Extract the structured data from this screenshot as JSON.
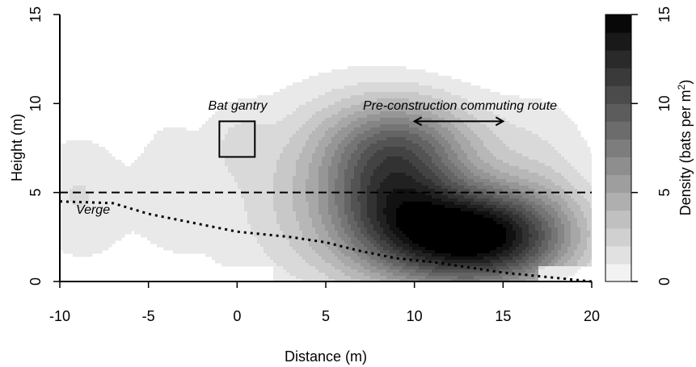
{
  "chart_data": {
    "type": "heatmap",
    "xlabel": "Distance (m)",
    "ylabel": "Height (m)",
    "xlim": [
      -10,
      20
    ],
    "ylim": [
      0,
      15
    ],
    "x_ticks": [
      "-10",
      "-5",
      "0",
      "5",
      "10",
      "15",
      "20"
    ],
    "y_ticks": [
      "0",
      "5",
      "10",
      "15"
    ],
    "colorbar": {
      "label_main": "Density (bats per m",
      "label_sup": "2",
      "label_close": ")",
      "range": [
        0,
        15
      ],
      "levels": 15,
      "ticks": [
        "0",
        "5",
        "10",
        "15"
      ],
      "color_low": "#ffffff",
      "color_high": "#000000"
    },
    "density_peaks": [
      {
        "x": 13.5,
        "y": 2.5,
        "density": 15
      },
      {
        "x": 9.0,
        "y": 6.5,
        "density": 9
      }
    ],
    "annotations": {
      "gantry_label": "Bat gantry",
      "route_label": "Pre-construction commuting route",
      "verge_label": "Verge"
    },
    "gantry_box": {
      "x": [
        -1,
        1
      ],
      "y": [
        7,
        9
      ]
    },
    "route_arrow": {
      "x": [
        10,
        15
      ],
      "y": 9
    },
    "dashed_line_y": 5,
    "verge_curve": [
      {
        "x": -10,
        "y": 4.5
      },
      {
        "x": -7,
        "y": 4.4
      },
      {
        "x": -5,
        "y": 3.8
      },
      {
        "x": -3,
        "y": 3.4
      },
      {
        "x": 0,
        "y": 2.8
      },
      {
        "x": 3,
        "y": 2.5
      },
      {
        "x": 5,
        "y": 2.2
      },
      {
        "x": 7,
        "y": 1.7
      },
      {
        "x": 9,
        "y": 1.3
      },
      {
        "x": 11,
        "y": 1.1
      },
      {
        "x": 13,
        "y": 0.8
      },
      {
        "x": 15,
        "y": 0.5
      },
      {
        "x": 17,
        "y": 0.3
      },
      {
        "x": 20,
        "y": 0.0
      }
    ]
  }
}
